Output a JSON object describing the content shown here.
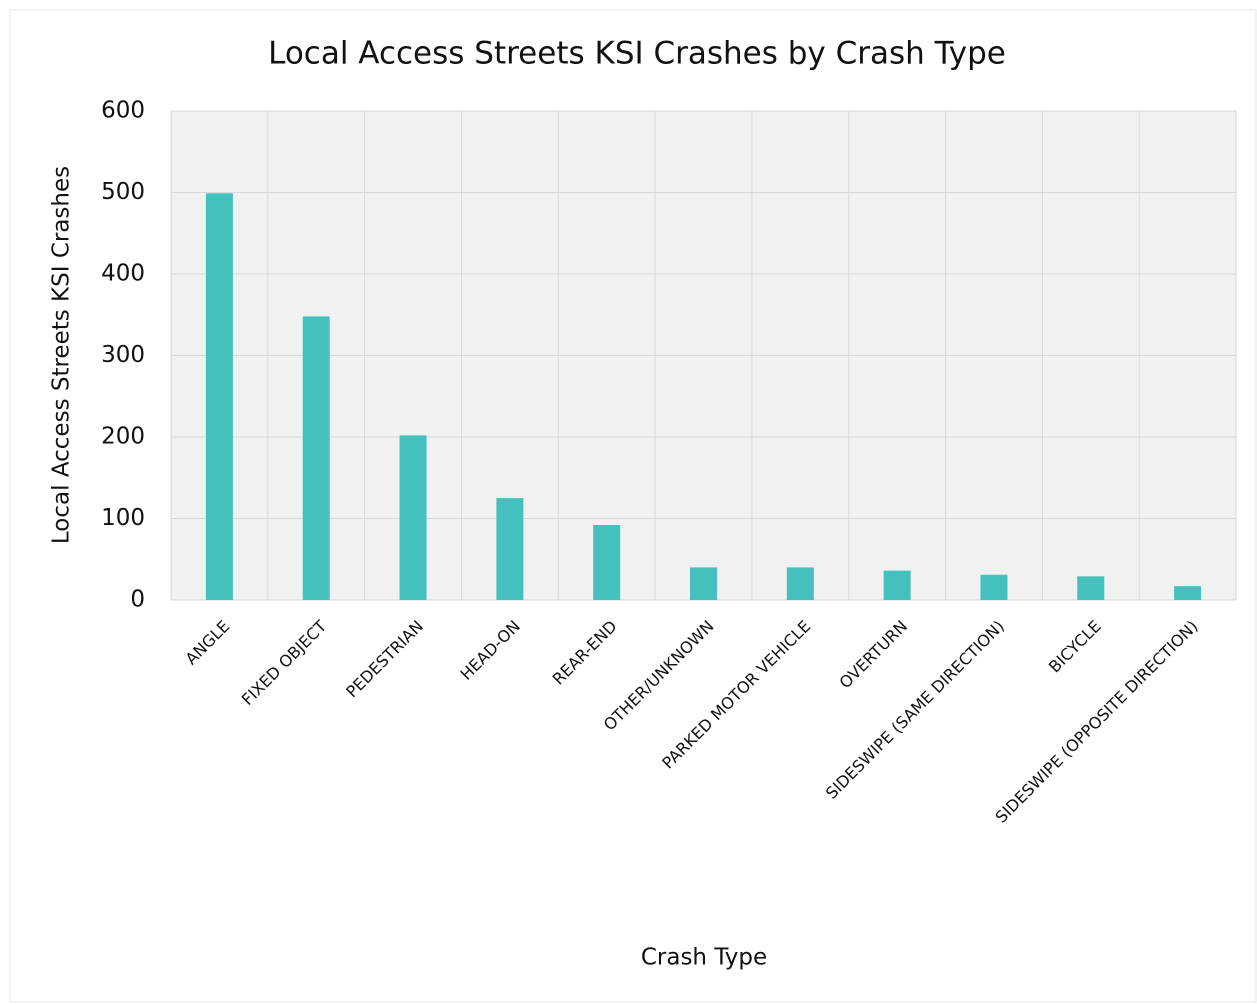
{
  "chart_data": {
    "type": "bar",
    "title": "Local Access Streets KSI Crashes by Crash Type",
    "x_label": "Crash Type",
    "y_label": "Local Access Streets KSI Crashes",
    "categories": [
      "ANGLE",
      "FIXED OBJECT",
      "PEDESTRIAN",
      "HEAD-ON",
      "REAR-END",
      "OTHER/UNKNOWN",
      "PARKED MOTOR VEHICLE",
      "OVERTURN",
      "SIDESWIPE (SAME DIRECTION)",
      "BICYCLE",
      "SIDESWIPE (OPPOSITE DIRECTION)"
    ],
    "values": [
      499,
      348,
      202,
      125,
      92,
      40,
      40,
      36,
      31,
      29,
      17
    ],
    "color": "#45c1bd",
    "ylim": [
      0,
      600
    ],
    "yticks": [
      0,
      100,
      200,
      300,
      400,
      500,
      600
    ],
    "grid": true
  }
}
